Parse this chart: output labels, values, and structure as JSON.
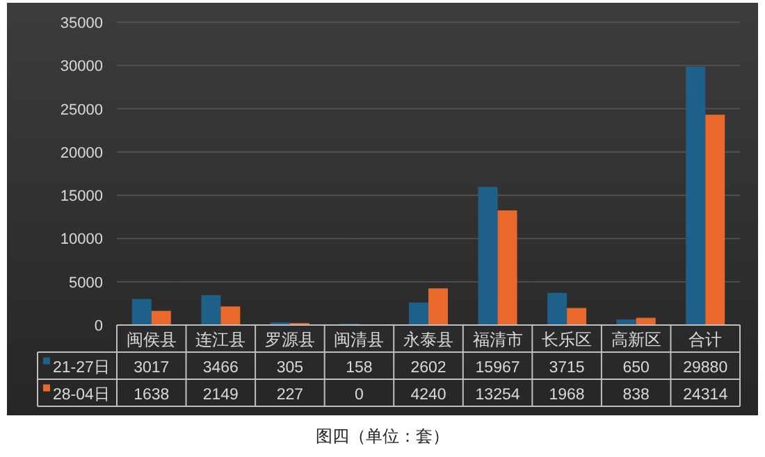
{
  "chart_data": {
    "type": "bar",
    "categories": [
      "闽侯县",
      "连江县",
      "罗源县",
      "闽清县",
      "永泰县",
      "福清市",
      "长乐区",
      "高新区",
      "合计"
    ],
    "series": [
      {
        "name": "21-27日",
        "color": "#1d6089",
        "values": [
          3017,
          3466,
          305,
          158,
          2602,
          15967,
          3715,
          650,
          29880
        ]
      },
      {
        "name": "28-04日",
        "color": "#e8692b",
        "values": [
          1638,
          2149,
          227,
          0,
          4240,
          13254,
          1968,
          838,
          24314
        ]
      }
    ],
    "ylim": [
      0,
      35000
    ],
    "yticks": [
      0,
      5000,
      10000,
      15000,
      20000,
      25000,
      30000,
      35000
    ],
    "grid": "y",
    "data_labels": true,
    "legend": "bottom",
    "annotations": [
      "图四（单位：套）"
    ]
  }
}
